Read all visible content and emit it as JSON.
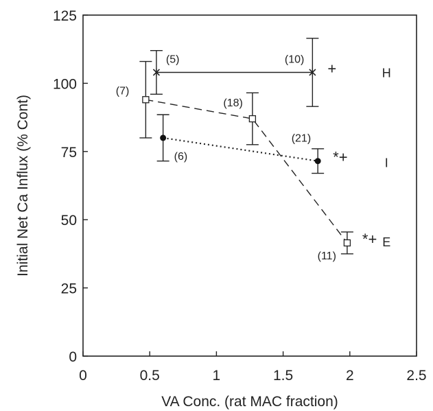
{
  "chart_data": {
    "type": "scatter",
    "title": "",
    "xlabel": "VA Conc. (rat MAC fraction)",
    "ylabel": "Initial Net Ca Influx (% Cont)",
    "xlim": [
      0,
      2.5
    ],
    "ylim": [
      0,
      125
    ],
    "x_ticks": [
      "0",
      "0.5",
      "1",
      "1.5",
      "2",
      "2.5"
    ],
    "y_ticks": [
      "0",
      "25",
      "50",
      "75",
      "100",
      "125"
    ],
    "grid": false,
    "legend": "none",
    "series": [
      {
        "name": "H",
        "marker": "asterisk",
        "line": "solid",
        "points": [
          {
            "x": 0.55,
            "y": 104,
            "err": 8,
            "label": "(5)"
          },
          {
            "x": 1.72,
            "y": 104,
            "err": 12.5,
            "label": "(10)"
          }
        ],
        "significance": "+"
      },
      {
        "name": "I",
        "marker": "filled-circle",
        "line": "dotted",
        "points": [
          {
            "x": 0.6,
            "y": 80,
            "err": 8.5,
            "label": "(6)"
          },
          {
            "x": 1.76,
            "y": 71.5,
            "err": 4.5,
            "label": "(21)"
          }
        ],
        "significance": "*+"
      },
      {
        "name": "E",
        "marker": "open-square",
        "line": "dashed",
        "points": [
          {
            "x": 0.47,
            "y": 94,
            "err": 14,
            "label": "(7)"
          },
          {
            "x": 1.27,
            "y": 87,
            "err": 9.5,
            "label": "(18)"
          },
          {
            "x": 1.98,
            "y": 41.5,
            "err": 4,
            "label": "(11)"
          }
        ],
        "significance": "*+"
      }
    ]
  }
}
